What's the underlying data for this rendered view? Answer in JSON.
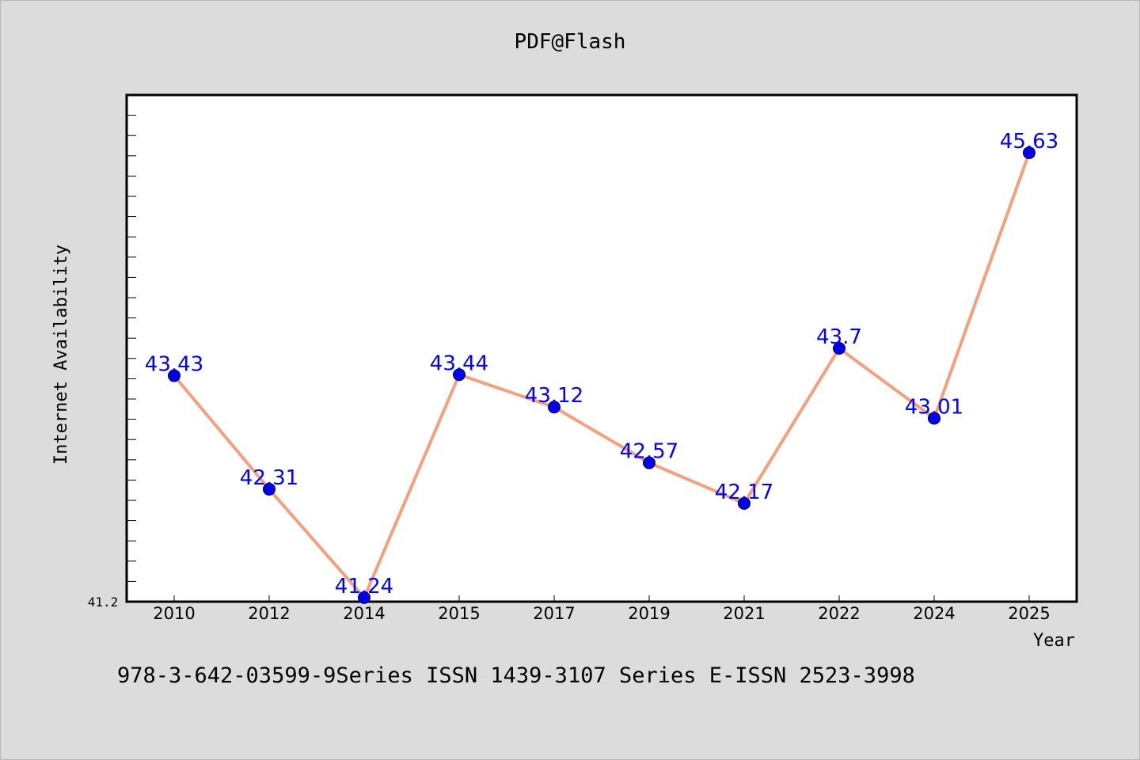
{
  "title": "PDF@Flash",
  "footer_text": "978-3-642-03599-9Series ISSN 1439-3107 Series E-ISSN 2523-3998",
  "colors": {
    "background": "#dcdcdc",
    "plot_background": "#ffffff",
    "line": "#f4a07f",
    "marker": "#0000ee",
    "data_label": "#0000ff"
  },
  "chart_data": {
    "type": "line",
    "title": "PDF@Flash",
    "xlabel": "Year",
    "ylabel": "Internet Availability",
    "categories": [
      "2010",
      "2012",
      "2014",
      "2015",
      "2017",
      "2019",
      "2021",
      "2022",
      "2024",
      "2025"
    ],
    "series": [
      {
        "values": [
          43.43,
          42.31,
          41.24,
          43.44,
          43.12,
          42.57,
          42.17,
          43.7,
          43.01,
          45.63
        ],
        "labels": [
          "43.43",
          "42.31",
          "41.24",
          "43.44",
          "43.12",
          "42.57",
          "42.17",
          "43.7",
          "43.01",
          "45.63"
        ]
      }
    ],
    "ylim": [
      41.2,
      46.2
    ],
    "y_min_label": "41.2",
    "grid": false,
    "legend": "none"
  }
}
